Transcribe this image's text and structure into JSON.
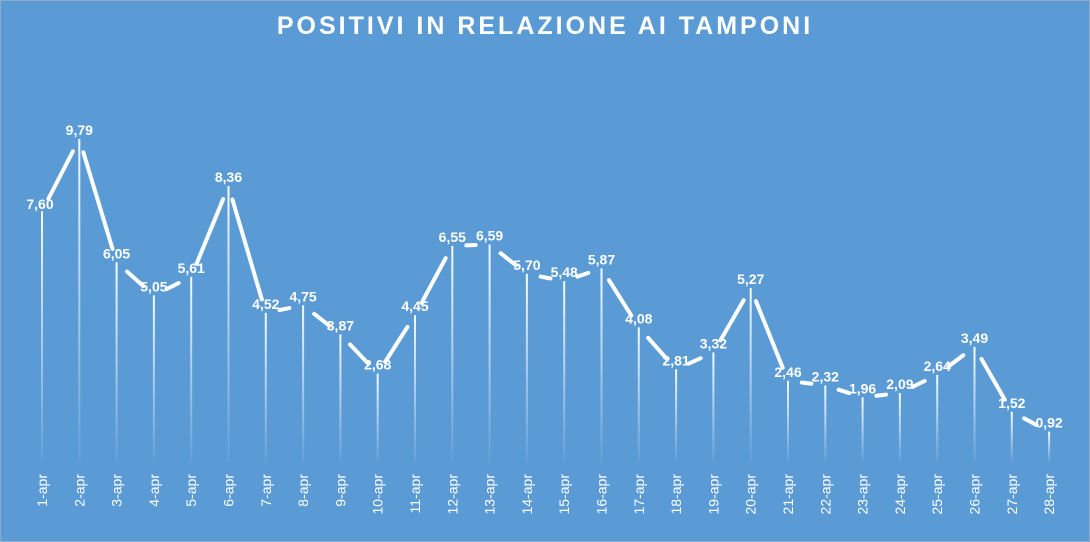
{
  "chart_data": {
    "type": "line",
    "title": "POSITIVI IN RELAZIONE AI TAMPONI",
    "xlabel": "",
    "ylabel": "",
    "ylim": [
      0,
      10
    ],
    "grid": false,
    "legend": "none",
    "categories": [
      "1-apr",
      "2-apr",
      "3-apr",
      "4-apr",
      "5-apr",
      "6-apr",
      "7-apr",
      "8-apr",
      "9-apr",
      "10-apr",
      "11-apr",
      "12-apr",
      "13-apr",
      "14-apr",
      "15-apr",
      "16-apr",
      "17-apr",
      "18-apr",
      "19-apr",
      "20-apr",
      "21-apr",
      "22-apr",
      "23-apr",
      "24-apr",
      "25-apr",
      "26-apr",
      "27-apr",
      "28-apr"
    ],
    "series": [
      {
        "values": [
          7.6,
          9.79,
          6.05,
          5.05,
          5.61,
          8.36,
          4.52,
          4.75,
          3.87,
          2.68,
          4.45,
          6.55,
          6.59,
          5.7,
          5.48,
          5.87,
          4.08,
          2.81,
          3.32,
          5.27,
          2.46,
          2.32,
          1.96,
          2.09,
          2.64,
          3.49,
          1.52,
          0.92
        ],
        "labels": [
          "7,60",
          "9,79",
          "6,05",
          "5,05",
          "5,61",
          "8,36",
          "4,52",
          "4,75",
          "3,87",
          "2,68",
          "4,45",
          "6,55",
          "6,59",
          "5,70",
          "5,48",
          "5,87",
          "4,08",
          "2,81",
          "3,32",
          "5,27",
          "2,46",
          "2,32",
          "1,96",
          "2,09",
          "2,64",
          "3,49",
          "1,52",
          "0,92"
        ]
      }
    ]
  },
  "colors": {
    "background": "#5b9bd5",
    "line": "#ffffff",
    "drop_line": "#ffffff",
    "text": "#ffffff"
  }
}
